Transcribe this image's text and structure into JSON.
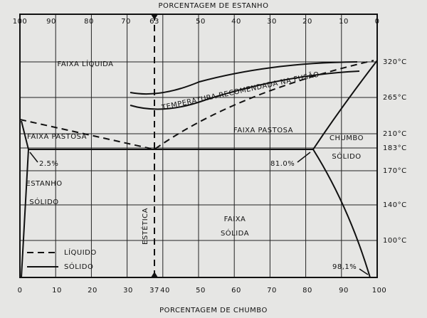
{
  "header": {
    "top_axis_title": "PORCENTAGEM DE ESTANHO",
    "bottom_axis_title": "PORCENTAGEM DE CHUMBO"
  },
  "top_axis": [
    "100",
    "90",
    "80",
    "70",
    "63",
    "50",
    "40",
    "30",
    "20",
    "10",
    "0"
  ],
  "bottom_axis": [
    "0",
    "10",
    "20",
    "30",
    "37",
    "40",
    "50",
    "60",
    "70",
    "80",
    "90",
    "100"
  ],
  "right_axis": [
    "320°C",
    "265°C",
    "210°C",
    "183°C",
    "170°C",
    "140°C",
    "100°C"
  ],
  "regions": {
    "liquid": "FAIXA LÍQUIDA",
    "recommended": "TEMPERATURA RECOMENDADA NA FUSÃO",
    "pasty_left": "FAIXA PASTOSA",
    "pasty_right": "FAIXA PASTOSA",
    "lead_1": "CHUMBO",
    "lead_2": "SÓLIDO",
    "tin_1": "ESTANHO",
    "tin_2": "SÓLIDO",
    "eutectic": "ESTÉTICA",
    "solid_1": "FAIXA",
    "solid_2": "SÓLIDA"
  },
  "annotations": {
    "tin_limit": "2.5%",
    "lead_limit": "81.0%",
    "lead_solvus": "98,1%"
  },
  "legend": {
    "liquid": "LÍQUIDO",
    "solid": "SÓLIDO"
  }
}
